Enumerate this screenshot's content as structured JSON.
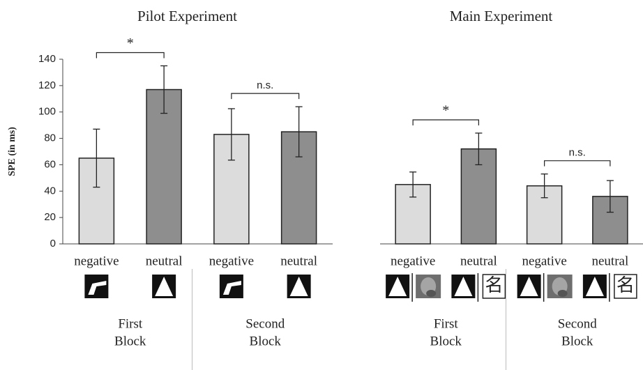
{
  "chart_data": [
    {
      "type": "bar",
      "title": "Pilot Experiment",
      "y_label": "SPE (in ms)",
      "categories": [
        "negative",
        "neutral",
        "negative",
        "neutral"
      ],
      "group_labels": [
        [
          "First",
          "Block"
        ],
        [
          "Second",
          "Block"
        ]
      ],
      "values": [
        65,
        117,
        83,
        85
      ],
      "errors": [
        22,
        18,
        19.5,
        19
      ],
      "colors": [
        "#dcdcdc",
        "#8e8e8e",
        "#dcdcdc",
        "#8e8e8e"
      ],
      "annotations": [
        "*",
        "n.s."
      ],
      "ylim": [
        0,
        140
      ],
      "yticks": [
        0,
        20,
        40,
        60,
        80,
        100,
        120,
        140
      ]
    },
    {
      "type": "bar",
      "title": "Main Experiment",
      "categories": [
        "negative",
        "neutral",
        "negative",
        "neutral"
      ],
      "group_labels": [
        [
          "First",
          "Block"
        ],
        [
          "Second",
          "Block"
        ]
      ],
      "values": [
        45,
        72,
        44,
        36
      ],
      "errors": [
        9.5,
        12,
        9,
        12
      ],
      "colors": [
        "#dcdcdc",
        "#8e8e8e",
        "#dcdcdc",
        "#8e8e8e"
      ],
      "annotations": [
        "*",
        "n.s."
      ],
      "character_stimulus": "名",
      "ylim": [
        0,
        140
      ]
    }
  ]
}
